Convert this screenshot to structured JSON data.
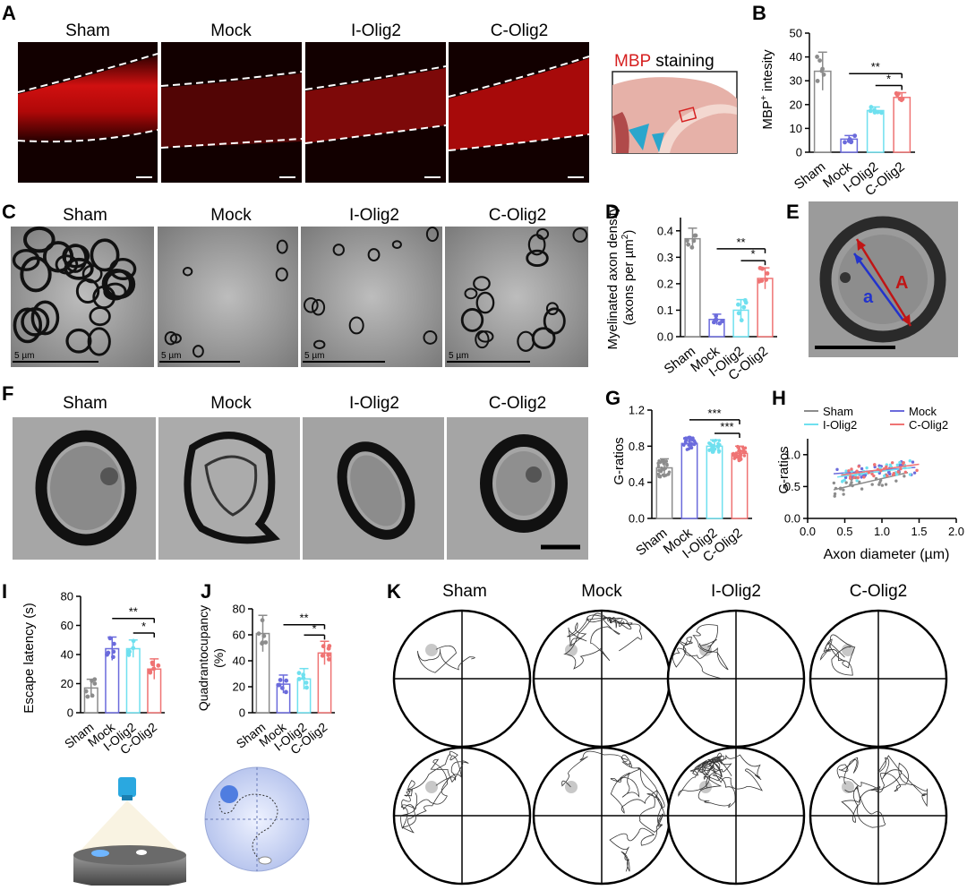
{
  "panels": {
    "A": {
      "letter": "A",
      "groups": [
        "Sham",
        "Mock",
        "I-Olig2",
        "C-Olig2"
      ]
    },
    "mbp": {
      "word": "MBP",
      "rest": "staining"
    },
    "B": {
      "letter": "B",
      "ylabel_prefix": "MBP",
      "ylabel_sup": "+",
      "ylabel_suffix": " intesity"
    },
    "C": {
      "letter": "C",
      "groups": [
        "Sham",
        "Mock",
        "I-Olig2",
        "C-Olig2"
      ],
      "scale_label": "5 µm"
    },
    "D": {
      "letter": "D",
      "ylabel_line1": "Myelinated axon density",
      "ylabel_line2_a": "(axons per µm",
      "ylabel_line2_sup": "2",
      "ylabel_line2_b": ")"
    },
    "E": {
      "letter": "E",
      "outer_label": "A",
      "inner_label": "a"
    },
    "F": {
      "letter": "F",
      "groups": [
        "Sham",
        "Mock",
        "I-Olig2",
        "C-Olig2"
      ]
    },
    "G": {
      "letter": "G",
      "ylabel": "G-ratios"
    },
    "H": {
      "letter": "H",
      "ylabel": "G-ratios",
      "xlabel": "Axon diameter (µm)",
      "legend": [
        "Sham",
        "Mock",
        "I-Olig2",
        "C-Olig2"
      ]
    },
    "I": {
      "letter": "I",
      "ylabel": "Escape latency (s)"
    },
    "J": {
      "letter": "J",
      "ylabel_line1": "Quadrantocupancy",
      "ylabel_line2": "(%)"
    },
    "K": {
      "letter": "K",
      "groups": [
        "Sham",
        "Mock",
        "I-Olig2",
        "C-Olig2"
      ]
    }
  },
  "colors": {
    "sham": "#8c8c8c",
    "mock": "#6b6bdc",
    "iolig2": "#6fe0ef",
    "colig2": "#ef7373",
    "mbp_red": "#d62020"
  },
  "chart_data": [
    {
      "id": "B",
      "type": "bar",
      "categories": [
        "Sham",
        "Mock",
        "I-Olig2",
        "C-Olig2"
      ],
      "values": [
        34,
        5.5,
        17.5,
        23
      ],
      "errors": [
        8,
        1.5,
        1.5,
        2
      ],
      "ylim": [
        0,
        50
      ],
      "yticks": [
        0,
        10,
        20,
        30,
        40,
        50
      ],
      "ylabel": "MBP+ intesity",
      "significance": [
        {
          "from": 1,
          "to": 3,
          "label": "**"
        },
        {
          "from": 2,
          "to": 3,
          "label": "*"
        }
      ]
    },
    {
      "id": "D",
      "type": "bar",
      "categories": [
        "Sham",
        "Mock",
        "I-Olig2",
        "C-Olig2"
      ],
      "values": [
        0.37,
        0.065,
        0.1,
        0.22
      ],
      "errors": [
        0.04,
        0.02,
        0.04,
        0.04
      ],
      "ylim": [
        0,
        0.45
      ],
      "yticks": [
        0,
        0.1,
        0.2,
        0.3,
        0.4
      ],
      "yticklabels": [
        "0.0",
        "0.1",
        "0.2",
        "0.3",
        "0.4"
      ],
      "ylabel": "Myelinated axon density (axons per µm2)",
      "significance": [
        {
          "from": 1,
          "to": 3,
          "label": "**"
        },
        {
          "from": 2,
          "to": 3,
          "label": "*"
        }
      ]
    },
    {
      "id": "G",
      "type": "bar",
      "categories": [
        "Sham",
        "Mock",
        "I-Olig2",
        "C-Olig2"
      ],
      "values": [
        0.56,
        0.83,
        0.8,
        0.72
      ],
      "errors": [
        0.1,
        0.07,
        0.07,
        0.08
      ],
      "ylim": [
        0,
        1.2
      ],
      "yticks": [
        0,
        0.4,
        0.8,
        1.2
      ],
      "yticklabels": [
        "0.0",
        "0.4",
        "0.8",
        "1.2"
      ],
      "ylabel": "G-ratios",
      "significance": [
        {
          "from": 1,
          "to": 3,
          "label": "***"
        },
        {
          "from": 2,
          "to": 3,
          "label": "***"
        }
      ]
    },
    {
      "id": "H",
      "type": "scatter",
      "xlim": [
        0,
        2
      ],
      "ylim": [
        0,
        1.25
      ],
      "xticks": [
        0,
        0.5,
        1,
        1.5,
        2
      ],
      "xticklabels": [
        "0.0",
        "0.5",
        "1.0",
        "1.5",
        "2.0"
      ],
      "yticks": [
        0,
        0.5,
        1
      ],
      "yticklabels": [
        "0.0",
        "0.5",
        "1.0"
      ],
      "xlabel": "Axon diameter (µm)",
      "ylabel": "G-ratios",
      "series": [
        {
          "name": "Sham",
          "fit": [
            [
              0.35,
              0.45
            ],
            [
              1.35,
              0.72
            ]
          ]
        },
        {
          "name": "Mock",
          "fit": [
            [
              0.35,
              0.7
            ],
            [
              1.45,
              0.8
            ]
          ]
        },
        {
          "name": "I-Olig2",
          "fit": [
            [
              0.4,
              0.65
            ],
            [
              1.4,
              0.8
            ]
          ]
        },
        {
          "name": "C-Olig2",
          "fit": [
            [
              0.45,
              0.68
            ],
            [
              1.5,
              0.85
            ]
          ]
        }
      ]
    },
    {
      "id": "I",
      "type": "bar",
      "categories": [
        "Sham",
        "Mock",
        "I-Olig2",
        "C-Olig2"
      ],
      "values": [
        17,
        44,
        44,
        30
      ],
      "errors": [
        6,
        8,
        6,
        7
      ],
      "ylim": [
        0,
        80
      ],
      "yticks": [
        0,
        20,
        40,
        60,
        80
      ],
      "ylabel": "Escape latency (s)",
      "significance": [
        {
          "from": 1,
          "to": 3,
          "label": "**"
        },
        {
          "from": 2,
          "to": 3,
          "label": "*"
        }
      ]
    },
    {
      "id": "J",
      "type": "bar",
      "categories": [
        "Sham",
        "Mock",
        "I-Olig2",
        "C-Olig2"
      ],
      "values": [
        61,
        22,
        26,
        46
      ],
      "errors": [
        14,
        7,
        8,
        9
      ],
      "ylim": [
        0,
        80
      ],
      "yticks": [
        0,
        20,
        40,
        60,
        80
      ],
      "ylabel": "Quadrantocupancy (%)",
      "significance": [
        {
          "from": 1,
          "to": 3,
          "label": "**"
        },
        {
          "from": 2,
          "to": 3,
          "label": "*"
        }
      ]
    }
  ]
}
